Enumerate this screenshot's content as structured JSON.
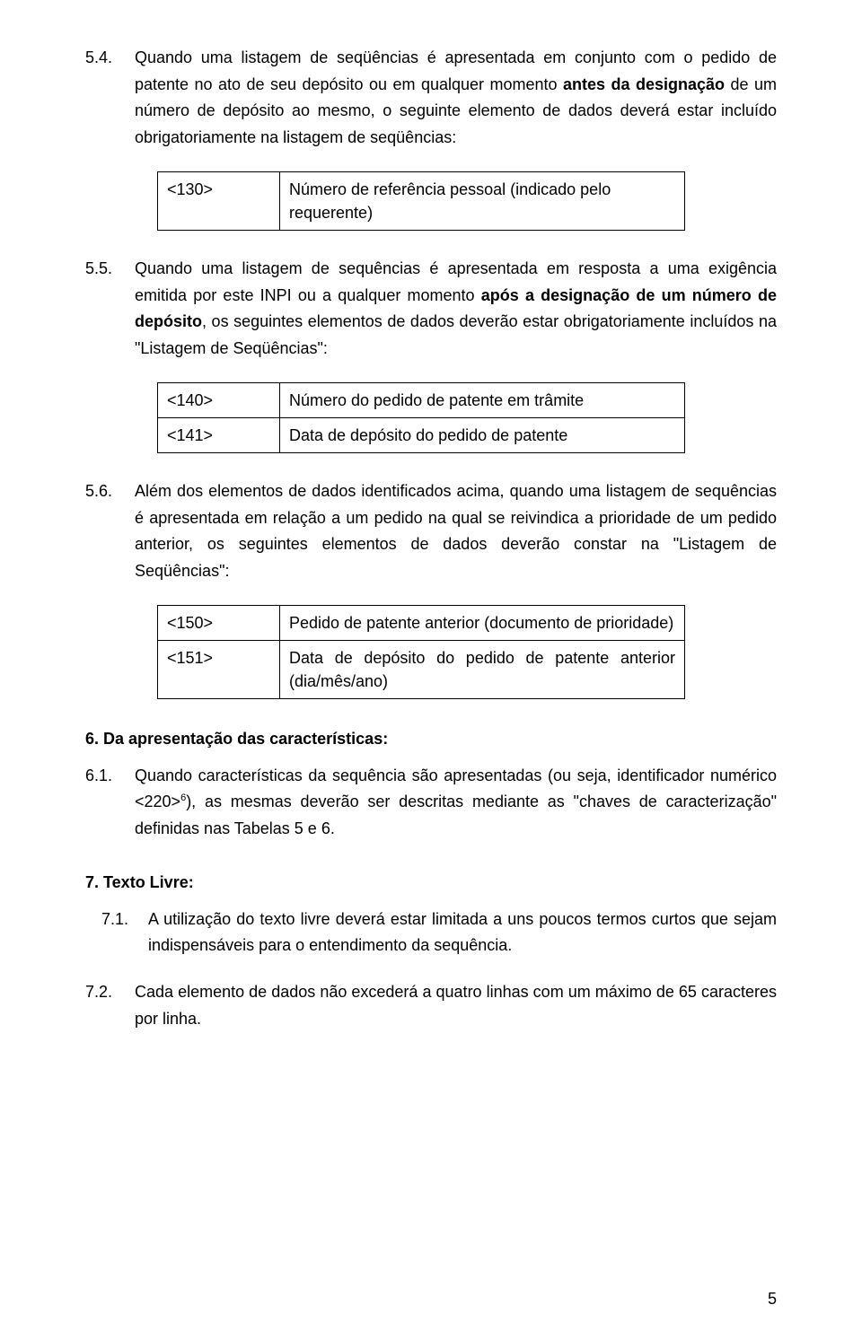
{
  "p54": {
    "num": "5.4.",
    "text_a": "Quando uma listagem de seqüências é apresentada em conjunto com o pedido de patente no ato de seu depósito ou em qualquer momento ",
    "text_b": "antes da designação",
    "text_c": " de um número de depósito ao mesmo, o seguinte elemento de dados deverá estar incluído obrigatoriamente na listagem de seqüências:"
  },
  "t130": {
    "code": "<130>",
    "desc": "Número de referência pessoal (indicado pelo requerente)"
  },
  "p55": {
    "num": "5.5.",
    "text_a": "Quando uma listagem de sequências é apresentada em resposta a uma exigência emitida por este INPI ou a qualquer momento ",
    "text_b": "após a designação de um número de depósito",
    "text_c": ", os seguintes elementos de dados deverão estar obrigatoriamente incluídos na \"Listagem de Seqüências\":"
  },
  "t140": {
    "code": "<140>",
    "desc": "Número do pedido de patente em trâmite"
  },
  "t141": {
    "code": "<141>",
    "desc": "Data de depósito do pedido de patente"
  },
  "p56": {
    "num": "5.6.",
    "text": "Além dos elementos de dados identificados acima, quando uma listagem de sequências é apresentada em relação a um pedido na qual se reivindica a prioridade de um pedido anterior, os seguintes elementos de dados deverão constar na \"Listagem de Seqüências\":"
  },
  "t150": {
    "code": "<150>",
    "desc": "Pedido de patente anterior (documento de prioridade)"
  },
  "t151": {
    "code": "<151>",
    "desc": "Data de depósito do pedido de patente anterior (dia/mês/ano)"
  },
  "h6": "6.  Da apresentação das características:",
  "p61": {
    "num": "6.1.",
    "text_a": "Quando características da sequência são apresentadas (ou seja, identificador numérico <220>",
    "sup": "6",
    "text_b": "), as mesmas deverão ser descritas mediante as \"chaves de caracterização\" definidas nas Tabelas 5 e 6."
  },
  "h7": "7.  Texto Livre:",
  "p71": {
    "num": "7.1.",
    "text": "A utilização do texto livre deverá estar limitada a uns poucos termos curtos que sejam indispensáveis para o entendimento da sequência."
  },
  "p72": {
    "num": "7.2.",
    "text": "Cada elemento de dados não excederá a quatro linhas com um máximo de 65 caracteres por linha."
  },
  "page_number": "5"
}
